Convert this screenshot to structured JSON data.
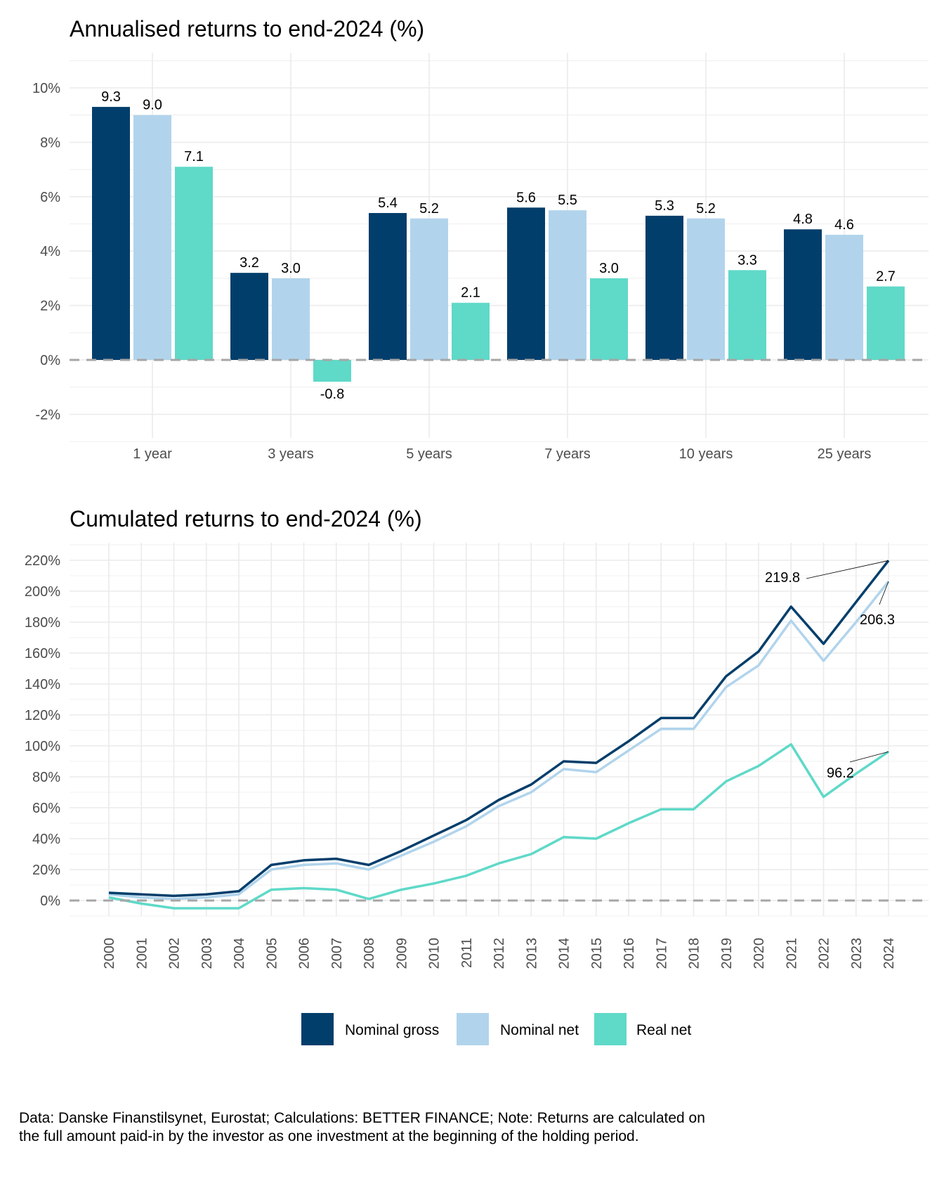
{
  "colors": {
    "nominal_gross": "#023e6b",
    "nominal_net": "#b1d4ec",
    "real_net": "#5fd9c8",
    "zero_line": "#a6a6a6",
    "grid": "#ebebeb"
  },
  "chart_data": [
    {
      "type": "bar",
      "title": "Annualised returns to end-2024 (%)",
      "xlabel": "",
      "ylabel": "",
      "categories": [
        "1 year",
        "3 years",
        "5 years",
        "7 years",
        "10 years",
        "25 years"
      ],
      "series": [
        {
          "name": "Nominal gross",
          "values": [
            9.3,
            3.2,
            5.4,
            5.6,
            5.3,
            4.8
          ]
        },
        {
          "name": "Nominal net",
          "values": [
            9.0,
            3.0,
            5.2,
            5.5,
            5.2,
            4.6
          ]
        },
        {
          "name": "Real net",
          "values": [
            7.1,
            -0.8,
            2.1,
            3.0,
            3.3,
            2.7
          ]
        }
      ],
      "value_labels": [
        [
          "9.3",
          "3.2",
          "5.4",
          "5.6",
          "5.3",
          "4.8"
        ],
        [
          "9.0",
          "3.0",
          "5.2",
          "5.5",
          "5.2",
          "4.6"
        ],
        [
          "7.1",
          "-0.8",
          "2.1",
          "3.0",
          "3.3",
          "2.7"
        ]
      ],
      "yticks": [
        -2,
        0,
        2,
        4,
        6,
        8,
        10
      ],
      "ytick_labels": [
        "-2%",
        "0%",
        "2%",
        "4%",
        "6%",
        "8%",
        "10%"
      ],
      "ylim": [
        -2.9,
        11.3
      ],
      "grid": true,
      "zero_line": "dashed"
    },
    {
      "type": "line",
      "title": "Cumulated returns to end-2024 (%)",
      "xlabel": "",
      "ylabel": "",
      "x": [
        "2000",
        "2001",
        "2002",
        "2003",
        "2004",
        "2005",
        "2006",
        "2007",
        "2008",
        "2009",
        "2010",
        "2011",
        "2012",
        "2013",
        "2014",
        "2015",
        "2016",
        "2017",
        "2018",
        "2019",
        "2020",
        "2021",
        "2022",
        "2023",
        "2024"
      ],
      "series": [
        {
          "name": "Nominal gross",
          "values": [
            5,
            4,
            3,
            4,
            6,
            23,
            26,
            27,
            23,
            32,
            42,
            52,
            65,
            75,
            90,
            89,
            103,
            118,
            118,
            145,
            161,
            190,
            166,
            193,
            219.8
          ]
        },
        {
          "name": "Nominal net",
          "values": [
            4,
            2,
            1,
            2,
            4,
            20,
            23,
            24,
            20,
            29,
            38,
            48,
            61,
            70,
            85,
            83,
            97,
            111,
            111,
            138,
            152,
            181,
            155,
            180,
            206.3
          ]
        },
        {
          "name": "Real net",
          "values": [
            2,
            -2,
            -5,
            -5,
            -5,
            7,
            8,
            7,
            1,
            7,
            11,
            16,
            24,
            30,
            41,
            40,
            50,
            59,
            59,
            77,
            87,
            101,
            67,
            82,
            96.2
          ]
        }
      ],
      "end_labels": [
        "219.8",
        "206.3",
        "96.2"
      ],
      "yticks": [
        0,
        20,
        40,
        60,
        80,
        100,
        120,
        140,
        160,
        180,
        200,
        220
      ],
      "ytick_labels": [
        "0%",
        "20%",
        "40%",
        "60%",
        "80%",
        "100%",
        "120%",
        "140%",
        "160%",
        "180%",
        "200%",
        "220%"
      ],
      "ylim": [
        -10,
        232
      ],
      "grid": true,
      "zero_line": "dashed"
    }
  ],
  "legend": {
    "position": "bottom",
    "items": [
      "Nominal gross",
      "Nominal net",
      "Real net"
    ]
  },
  "note": {
    "line1": "Data: Danske Finanstilsynet, Eurostat; Calculations: BETTER FINANCE; Note: Returns are calculated on",
    "line2": "the full amount paid-in by the investor as one investment at the beginning of the holding period."
  }
}
